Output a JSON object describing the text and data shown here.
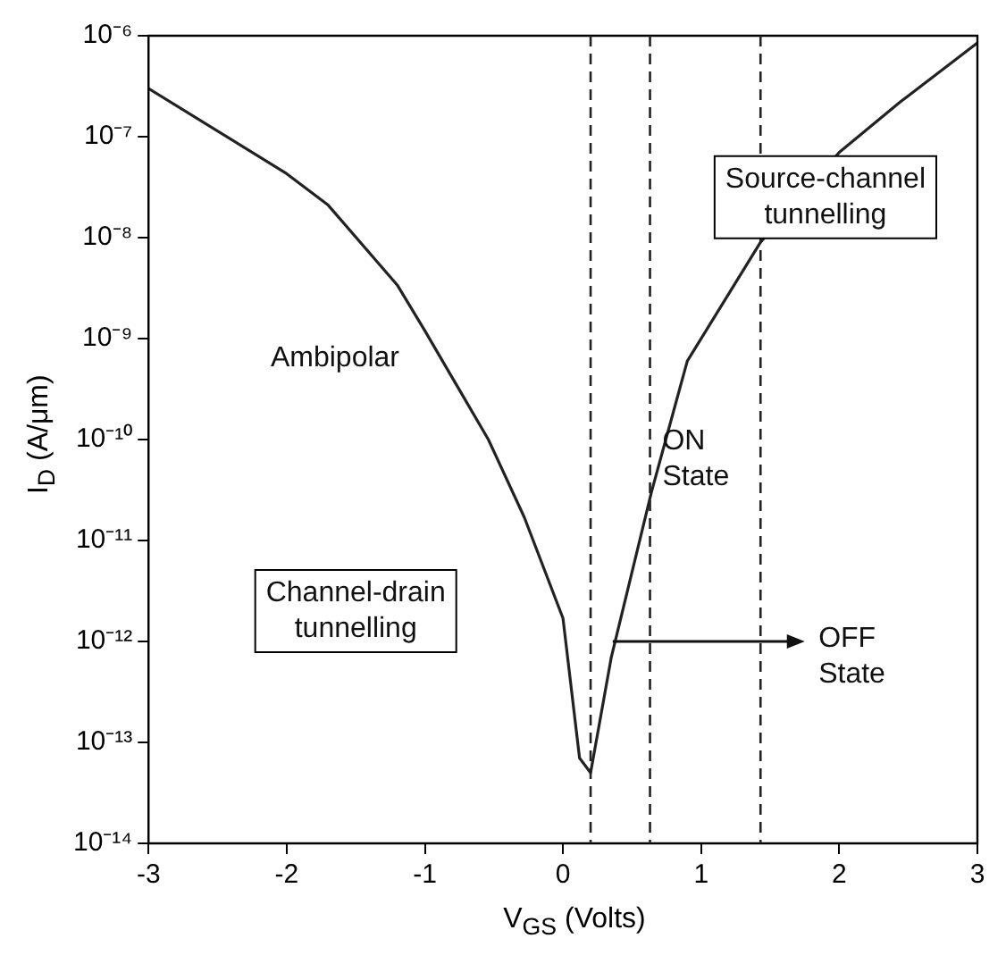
{
  "chart_data": {
    "type": "line",
    "xlabel": "V$_{GS}$ (Volts)",
    "ylabel": "I$_{D}$ (A/μm)",
    "x": [
      -3,
      -2,
      -1.7,
      -1.2,
      -1,
      -0.54,
      -0.28,
      0,
      0.12,
      0.2,
      0.35,
      0.64,
      0.9,
      1.43,
      2,
      2.44,
      3
    ],
    "series": [
      {
        "color": "#222222",
        "values": [
          3e-07,
          4.3e-08,
          2.1e-08,
          3.4e-09,
          1.2e-09,
          1e-10,
          1.7e-11,
          1.7e-12,
          7e-14,
          5e-14,
          7e-13,
          3e-11,
          6e-10,
          9e-09,
          7e-08,
          2.2e-07,
          8.5e-07
        ]
      }
    ],
    "xlim": [
      -3,
      3
    ],
    "xticks": [
      -3,
      -2,
      -1,
      0,
      1,
      2,
      3
    ],
    "ylim": [
      1e-14,
      1e-06
    ],
    "yticks": [
      {
        "value": 1e-14,
        "label": "10⁻¹⁴"
      },
      {
        "value": 1e-13,
        "label": "10⁻¹³"
      },
      {
        "value": 1e-12,
        "label": "10⁻¹²"
      },
      {
        "value": 1e-11,
        "label": "10⁻¹¹"
      },
      {
        "value": 1e-10,
        "label": "10⁻¹⁰"
      },
      {
        "value": 1e-09,
        "label": "10⁻⁹"
      },
      {
        "value": 1e-08,
        "label": "10⁻⁸"
      },
      {
        "value": 1e-07,
        "label": "10⁻⁷"
      },
      {
        "value": 1e-06,
        "label": "10⁻⁶"
      }
    ],
    "log": "y",
    "grid": false,
    "legend": false,
    "marker": "none",
    "line_style": "solid",
    "ref_lines": [
      {
        "axis": "x",
        "value": 0.2,
        "line_style": "dashed",
        "color": "#222222"
      },
      {
        "axis": "x",
        "value": 0.63,
        "line_style": "dashed",
        "color": "#222222"
      },
      {
        "axis": "x",
        "value": 1.43,
        "line_style": "dashed",
        "color": "#222222"
      }
    ],
    "annotations": [
      "Ambipolar",
      "Channel-drain\ntunnelling",
      "Source-channel\ntunnelling",
      "ON\nState",
      "OFF\nState"
    ]
  }
}
